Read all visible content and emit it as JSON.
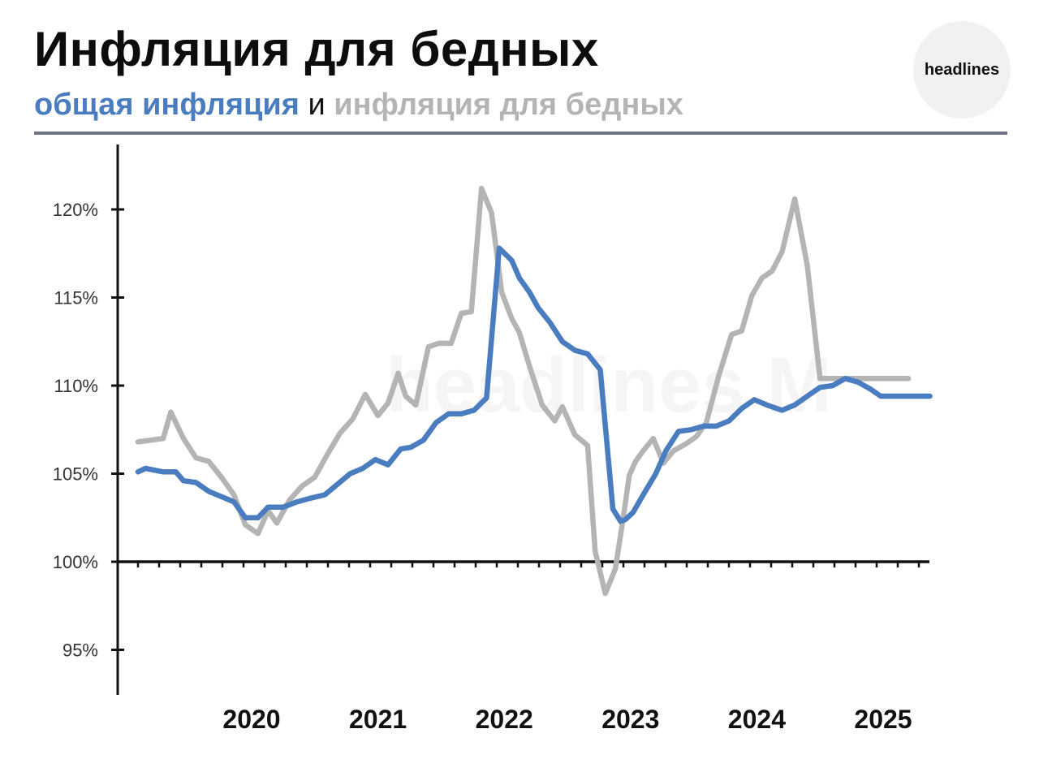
{
  "header": {
    "title": "Инфляция для бедных",
    "subtitle_part1": "общая инфляция",
    "subtitle_conj": "и",
    "subtitle_part2": "инфляция для бедных"
  },
  "logo": {
    "text": "headlines"
  },
  "watermark": {
    "text": "headlines M"
  },
  "colors": {
    "general": "#4a7cc0",
    "poor": "#b4b4b4",
    "axis": "#111111",
    "rule": "#6f7585"
  },
  "chart_data": {
    "type": "line",
    "ylim": [
      92.5,
      124
    ],
    "y_ticks": [
      95,
      100,
      105,
      110,
      115,
      120
    ],
    "y_tick_labels": [
      "95%",
      "100%",
      "105%",
      "110%",
      "115%",
      "120%"
    ],
    "x_ticks": [
      2020,
      2021,
      2022,
      2023,
      2024,
      2025
    ],
    "x_tick_labels": [
      "2020",
      "2021",
      "2022",
      "2023",
      "2024",
      "2025"
    ],
    "xlim": [
      2019.1,
      2025.48
    ],
    "reference_line": 100,
    "grid": false,
    "legend": "subtitle",
    "series": [
      {
        "key": "general",
        "x": [
          2019.1,
          2019.16,
          2019.3,
          2019.4,
          2019.46,
          2019.56,
          2019.66,
          2019.76,
          2019.86,
          2019.95,
          2020.05,
          2020.13,
          2020.25,
          2020.36,
          2020.46,
          2020.58,
          2020.68,
          2020.78,
          2020.88,
          2020.98,
          2021.08,
          2021.18,
          2021.26,
          2021.36,
          2021.46,
          2021.56,
          2021.66,
          2021.76,
          2021.86,
          2021.96,
          2022.06,
          2022.12,
          2022.2,
          2022.27,
          2022.36,
          2022.46,
          2022.56,
          2022.66,
          2022.76,
          2022.86,
          2022.92,
          2022.96,
          2023.02,
          2023.1,
          2023.2,
          2023.28,
          2023.38,
          2023.48,
          2023.58,
          2023.68,
          2023.78,
          2023.88,
          2023.98,
          2024.08,
          2024.2,
          2024.3,
          2024.4,
          2024.5,
          2024.6,
          2024.7,
          2024.8,
          2024.9,
          2024.98,
          2025.08,
          2025.18,
          2025.3,
          2025.37
        ],
        "y": [
          105.1,
          105.3,
          105.1,
          105.1,
          104.6,
          104.5,
          104.0,
          103.7,
          103.4,
          102.5,
          102.5,
          103.1,
          103.1,
          103.4,
          103.6,
          103.8,
          104.4,
          105.0,
          105.3,
          105.8,
          105.5,
          106.4,
          106.5,
          106.9,
          107.9,
          108.4,
          108.4,
          108.6,
          109.3,
          117.8,
          117.1,
          116.1,
          115.3,
          114.4,
          113.6,
          112.5,
          112.0,
          111.8,
          110.9,
          103.0,
          102.3,
          102.4,
          102.8,
          103.8,
          105.0,
          106.3,
          107.4,
          107.5,
          107.7,
          107.7,
          108.0,
          108.7,
          109.2,
          108.9,
          108.6,
          108.9,
          109.4,
          109.9,
          110.0,
          110.4,
          110.2,
          109.8,
          109.4,
          109.4,
          109.4,
          109.4,
          109.4
        ],
        "name": ""
      },
      {
        "key": "poor",
        "x": [
          2019.1,
          2019.3,
          2019.36,
          2019.46,
          2019.56,
          2019.66,
          2019.76,
          2019.86,
          2019.95,
          2020.05,
          2020.13,
          2020.2,
          2020.3,
          2020.4,
          2020.5,
          2020.6,
          2020.7,
          2020.8,
          2020.9,
          2021.0,
          2021.08,
          2021.16,
          2021.22,
          2021.3,
          2021.4,
          2021.48,
          2021.58,
          2021.66,
          2021.74,
          2021.82,
          2021.9,
          2021.98,
          2022.06,
          2022.12,
          2022.2,
          2022.3,
          2022.4,
          2022.46,
          2022.56,
          2022.66,
          2022.72,
          2022.8,
          2022.88,
          2022.94,
          2022.99,
          2023.04,
          2023.1,
          2023.18,
          2023.26,
          2023.34,
          2023.44,
          2023.52,
          2023.6,
          2023.7,
          2023.8,
          2023.88,
          2023.96,
          2024.04,
          2024.12,
          2024.2,
          2024.3,
          2024.4,
          2024.5,
          2024.6,
          2024.7,
          2024.8,
          2024.87,
          2024.95,
          2025.03,
          2025.1,
          2025.2
        ],
        "y": [
          106.8,
          107.0,
          108.5,
          107.0,
          105.9,
          105.7,
          104.8,
          103.8,
          102.1,
          101.6,
          102.9,
          102.2,
          103.5,
          104.3,
          104.8,
          106.1,
          107.3,
          108.1,
          109.5,
          108.3,
          109.0,
          110.7,
          109.4,
          108.9,
          112.2,
          112.4,
          112.4,
          114.1,
          114.2,
          121.2,
          119.8,
          115.3,
          113.8,
          113.0,
          111.1,
          108.9,
          108.0,
          108.8,
          107.2,
          106.6,
          100.6,
          98.2,
          99.6,
          102.4,
          104.9,
          105.7,
          106.3,
          107.0,
          105.6,
          106.3,
          106.7,
          107.1,
          107.9,
          110.6,
          112.9,
          113.1,
          115.1,
          116.1,
          116.5,
          117.6,
          120.6,
          116.8,
          110.4,
          110.4,
          110.4,
          110.4,
          110.4,
          110.4,
          110.4,
          110.4,
          110.4
        ],
        "name": ""
      }
    ]
  }
}
